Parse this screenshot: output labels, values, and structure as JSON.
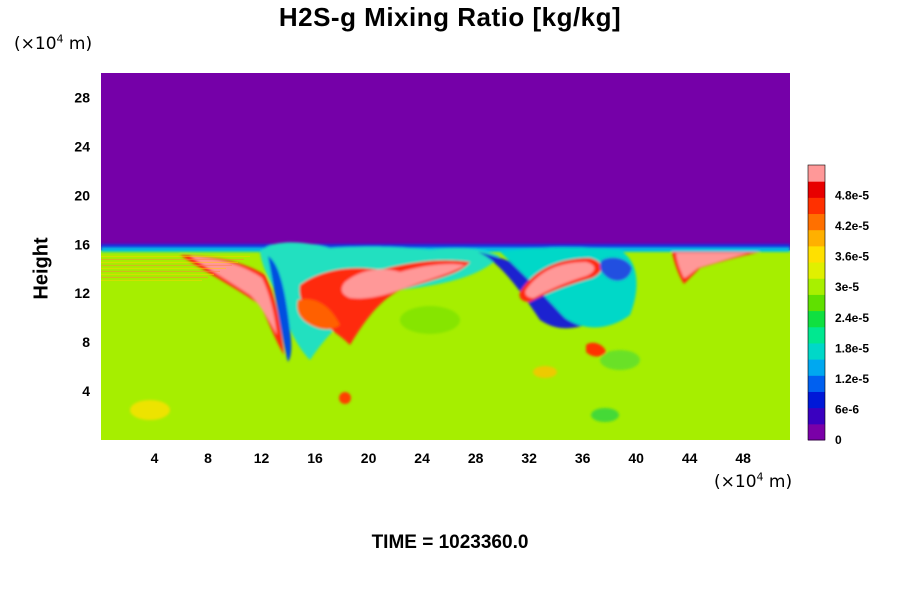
{
  "chart_data": {
    "type": "heatmap",
    "title": "H2S-g Mixing Ratio [kg/kg]",
    "ylabel": "Height",
    "x_unit": {
      "base": "(×10",
      "exp": "4",
      "rest": " m)"
    },
    "y_unit": {
      "base": "(×10",
      "exp": "4",
      "rest": " m)"
    },
    "xlim": [
      0,
      51.5
    ],
    "ylim": [
      0,
      30
    ],
    "x_ticks": [
      "4",
      "8",
      "12",
      "16",
      "20",
      "24",
      "28",
      "32",
      "36",
      "40",
      "44",
      "48"
    ],
    "y_ticks": [
      "4",
      "8",
      "12",
      "16",
      "20",
      "24",
      "28"
    ],
    "colorbar": {
      "range": [
        0,
        5.4e-05
      ],
      "ticks": [
        {
          "value": 0,
          "label": "0"
        },
        {
          "value": 6e-06,
          "label": "6e-6"
        },
        {
          "value": 1.2e-05,
          "label": "1.2e-5"
        },
        {
          "value": 1.8e-05,
          "label": "1.8e-5"
        },
        {
          "value": 2.4e-05,
          "label": "2.4e-5"
        },
        {
          "value": 3e-05,
          "label": "3e-5"
        },
        {
          "value": 3.6e-05,
          "label": "3.6e-5"
        },
        {
          "value": 4.2e-05,
          "label": "4.2e-5"
        },
        {
          "value": 4.8e-05,
          "label": "4.8e-5"
        }
      ],
      "colors": [
        "#7a00a8",
        "#3a00c0",
        "#0018d8",
        "#0060f0",
        "#00a8f0",
        "#00d8c8",
        "#00e890",
        "#10e040",
        "#60e000",
        "#a8f000",
        "#e0f000",
        "#ffe000",
        "#ffb000",
        "#ff7000",
        "#ff3000",
        "#e80000",
        "#ff9898"
      ]
    },
    "field": {
      "top_value": 0,
      "top_color": "#7500a8",
      "background_color": "#a6ee00",
      "interface_height": 15.5
    }
  },
  "footer": {
    "time_label": "TIME = 1023360.0"
  }
}
